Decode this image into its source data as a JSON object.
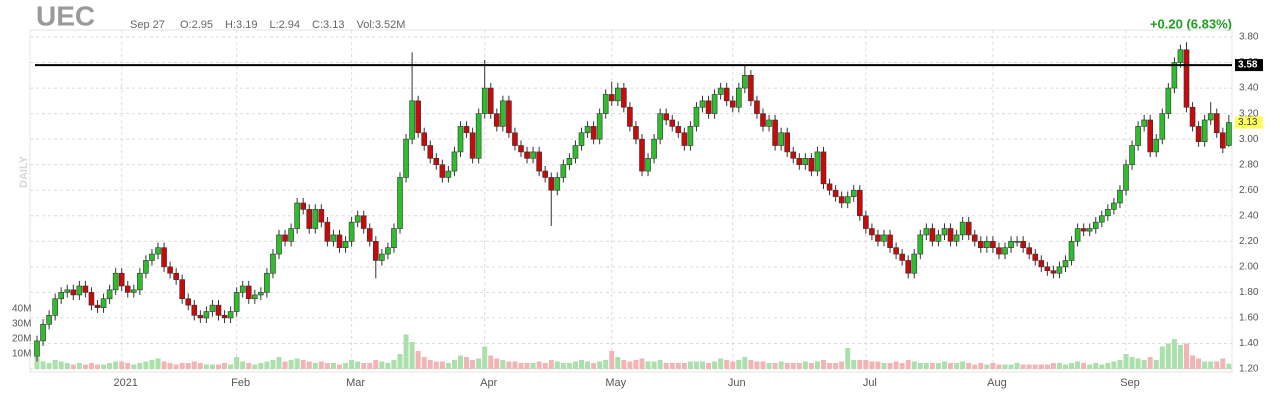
{
  "chart_data": {
    "type": "candlestick",
    "ticker": "UEC",
    "date": "Sep 27",
    "info": [
      "O:2.95",
      "H:3.19",
      "L:2.94",
      "C:3.13",
      "Vol:3.52M"
    ],
    "change": "+0.20 (6.83%)",
    "period": "DAILY",
    "up_color": "#2dbd2d",
    "down_color": "#c80a0a",
    "up_volume_color": "#abdfab",
    "down_volume_color": "#f2b5b5",
    "grid": true,
    "ylim": [
      1.2,
      3.8
    ],
    "yticks": [
      {
        "value": 1.2,
        "label": "1.20"
      },
      {
        "value": 1.4,
        "label": "1.40"
      },
      {
        "value": 1.6,
        "label": "1.60"
      },
      {
        "value": 1.8,
        "label": "1.80"
      },
      {
        "value": 2.0,
        "label": "2.00"
      },
      {
        "value": 2.2,
        "label": "2.20"
      },
      {
        "value": 2.4,
        "label": "2.40"
      },
      {
        "value": 2.6,
        "label": "2.60"
      },
      {
        "value": 2.8,
        "label": "2.80"
      },
      {
        "value": 3.0,
        "label": "3.00"
      },
      {
        "value": 3.2,
        "label": "3.20"
      },
      {
        "value": 3.4,
        "label": "3.40"
      },
      {
        "value": 3.6,
        "label": "3.60"
      },
      {
        "value": 3.8,
        "label": "3.80"
      }
    ],
    "vlim": [
      0,
      40
    ],
    "vticks": [
      {
        "value": 10,
        "label": "10M"
      },
      {
        "value": 20,
        "label": "20M"
      },
      {
        "value": 30,
        "label": "30M"
      },
      {
        "value": 40,
        "label": "40M"
      }
    ],
    "xticks": [
      {
        "value": 14,
        "label": "2021"
      },
      {
        "value": 33,
        "label": "Feb"
      },
      {
        "value": 52,
        "label": "Mar"
      },
      {
        "value": 74,
        "label": "Apr"
      },
      {
        "value": 95,
        "label": "May"
      },
      {
        "value": 115,
        "label": "Jun"
      },
      {
        "value": 137,
        "label": "Jul"
      },
      {
        "value": 158,
        "label": "Aug"
      },
      {
        "value": 180,
        "label": "Sep"
      }
    ],
    "hline": {
      "value": 3.58,
      "label": "3.58"
    },
    "open": [
      1.3,
      1.42,
      1.55,
      1.62,
      1.75,
      1.8,
      1.82,
      1.78,
      1.85,
      1.8,
      1.7,
      1.68,
      1.75,
      1.82,
      1.95,
      1.85,
      1.8,
      1.82,
      1.95,
      2.05,
      2.1,
      2.15,
      2.0,
      1.95,
      1.9,
      1.75,
      1.7,
      1.62,
      1.6,
      1.65,
      1.7,
      1.62,
      1.6,
      1.65,
      1.8,
      1.85,
      1.75,
      1.78,
      1.8,
      1.95,
      2.1,
      2.25,
      2.2,
      2.3,
      2.5,
      2.45,
      2.3,
      2.45,
      2.35,
      2.2,
      2.25,
      2.15,
      2.2,
      2.35,
      2.4,
      2.3,
      2.2,
      2.05,
      2.1,
      2.15,
      2.3,
      2.7,
      3.0,
      3.3,
      3.05,
      2.95,
      2.85,
      2.8,
      2.7,
      2.75,
      2.9,
      3.1,
      3.05,
      2.85,
      3.2,
      3.4,
      3.2,
      3.1,
      3.3,
      3.05,
      2.95,
      2.9,
      2.85,
      2.9,
      2.75,
      2.7,
      2.6,
      2.7,
      2.8,
      2.85,
      2.95,
      3.05,
      3.1,
      3.0,
      3.2,
      3.35,
      3.3,
      3.4,
      3.25,
      3.1,
      3.0,
      2.75,
      2.85,
      3.0,
      3.2,
      3.15,
      3.1,
      3.05,
      2.95,
      3.1,
      3.25,
      3.3,
      3.2,
      3.35,
      3.4,
      3.3,
      3.25,
      3.4,
      3.5,
      3.3,
      3.2,
      3.1,
      3.15,
      2.95,
      3.05,
      2.9,
      2.85,
      2.8,
      2.85,
      2.75,
      2.9,
      2.65,
      2.6,
      2.55,
      2.5,
      2.55,
      2.6,
      2.4,
      2.3,
      2.25,
      2.2,
      2.25,
      2.15,
      2.1,
      2.05,
      1.95,
      2.1,
      2.25,
      2.3,
      2.2,
      2.25,
      2.3,
      2.2,
      2.25,
      2.35,
      2.25,
      2.2,
      2.15,
      2.2,
      2.15,
      2.1,
      2.15,
      2.2,
      2.2,
      2.15,
      2.1,
      2.05,
      2.0,
      1.97,
      1.95,
      2.0,
      2.05,
      2.2,
      2.3,
      2.28,
      2.3,
      2.35,
      2.4,
      2.45,
      2.5,
      2.6,
      2.8,
      2.95,
      3.1,
      3.15,
      2.9,
      3.0,
      3.2,
      3.4,
      3.6,
      3.7,
      3.25,
      3.1,
      2.98,
      3.15,
      3.2,
      3.05,
      2.95
    ],
    "high": [
      1.46,
      1.59,
      1.66,
      1.79,
      1.84,
      1.86,
      1.86,
      1.89,
      1.89,
      1.84,
      1.74,
      1.79,
      1.86,
      1.99,
      1.99,
      1.89,
      1.86,
      1.99,
      2.09,
      2.14,
      2.19,
      2.19,
      2.04,
      1.99,
      1.94,
      1.79,
      1.74,
      1.66,
      1.69,
      1.74,
      1.74,
      1.66,
      1.69,
      1.84,
      1.89,
      1.89,
      1.82,
      1.84,
      1.99,
      2.14,
      2.29,
      2.29,
      2.34,
      2.54,
      2.54,
      2.49,
      2.49,
      2.49,
      2.39,
      2.29,
      2.29,
      2.24,
      2.39,
      2.44,
      2.44,
      2.34,
      2.24,
      2.14,
      2.19,
      2.34,
      2.74,
      3.04,
      3.68,
      3.34,
      3.09,
      2.99,
      2.89,
      2.84,
      2.79,
      2.94,
      3.14,
      3.14,
      3.09,
      3.24,
      3.62,
      3.44,
      3.24,
      3.34,
      3.34,
      3.09,
      2.99,
      2.94,
      2.94,
      2.94,
      2.79,
      2.74,
      2.74,
      2.84,
      2.89,
      2.99,
      3.09,
      3.14,
      3.14,
      3.24,
      3.39,
      3.45,
      3.44,
      3.44,
      3.29,
      3.14,
      3.04,
      2.89,
      3.04,
      3.24,
      3.24,
      3.19,
      3.14,
      3.09,
      3.14,
      3.29,
      3.34,
      3.34,
      3.39,
      3.44,
      3.44,
      3.34,
      3.44,
      3.58,
      3.54,
      3.34,
      3.24,
      3.19,
      3.19,
      3.09,
      3.09,
      2.94,
      2.89,
      2.89,
      2.89,
      2.94,
      2.94,
      2.69,
      2.64,
      2.59,
      2.59,
      2.64,
      2.64,
      2.44,
      2.34,
      2.29,
      2.29,
      2.29,
      2.19,
      2.14,
      2.09,
      2.14,
      2.29,
      2.34,
      2.34,
      2.29,
      2.34,
      2.34,
      2.29,
      2.39,
      2.39,
      2.29,
      2.24,
      2.24,
      2.24,
      2.19,
      2.19,
      2.24,
      2.24,
      2.24,
      2.19,
      2.14,
      2.09,
      2.04,
      2.01,
      2.04,
      2.09,
      2.24,
      2.34,
      2.34,
      2.34,
      2.39,
      2.44,
      2.49,
      2.54,
      2.64,
      2.84,
      2.99,
      3.14,
      3.19,
      3.19,
      3.04,
      3.24,
      3.44,
      3.64,
      3.74,
      3.76,
      3.29,
      3.14,
      3.19,
      3.29,
      3.24,
      3.09,
      3.19
    ],
    "low": [
      1.26,
      1.38,
      1.51,
      1.58,
      1.71,
      1.76,
      1.74,
      1.74,
      1.76,
      1.66,
      1.64,
      1.64,
      1.71,
      1.78,
      1.81,
      1.76,
      1.76,
      1.78,
      1.91,
      2.01,
      2.06,
      1.96,
      1.91,
      1.86,
      1.71,
      1.66,
      1.58,
      1.56,
      1.56,
      1.61,
      1.58,
      1.56,
      1.56,
      1.61,
      1.76,
      1.71,
      1.71,
      1.74,
      1.76,
      1.91,
      2.06,
      2.16,
      2.16,
      2.26,
      2.41,
      2.26,
      2.26,
      2.31,
      2.16,
      2.16,
      2.11,
      2.11,
      2.16,
      2.31,
      2.26,
      2.16,
      1.91,
      2.01,
      2.06,
      2.11,
      2.26,
      2.66,
      2.96,
      3.01,
      2.91,
      2.81,
      2.76,
      2.66,
      2.66,
      2.71,
      2.86,
      3.01,
      2.81,
      2.81,
      3.16,
      3.16,
      3.06,
      3.06,
      3.01,
      2.91,
      2.86,
      2.81,
      2.81,
      2.71,
      2.66,
      2.32,
      2.56,
      2.66,
      2.76,
      2.81,
      2.91,
      3.01,
      2.96,
      2.96,
      3.16,
      3.26,
      3.26,
      3.21,
      3.06,
      2.96,
      2.71,
      2.71,
      2.81,
      2.96,
      3.11,
      3.06,
      3.01,
      2.91,
      2.91,
      3.06,
      3.21,
      3.16,
      3.16,
      3.31,
      3.26,
      3.21,
      3.21,
      3.36,
      3.26,
      3.16,
      3.06,
      3.06,
      2.91,
      2.91,
      2.86,
      2.81,
      2.76,
      2.76,
      2.71,
      2.71,
      2.61,
      2.56,
      2.51,
      2.46,
      2.46,
      2.51,
      2.36,
      2.26,
      2.21,
      2.16,
      2.16,
      2.11,
      2.06,
      2.01,
      1.91,
      1.91,
      2.06,
      2.21,
      2.16,
      2.16,
      2.21,
      2.16,
      2.16,
      2.21,
      2.21,
      2.16,
      2.11,
      2.11,
      2.11,
      2.06,
      2.06,
      2.11,
      2.16,
      2.11,
      2.06,
      2.01,
      1.96,
      1.93,
      1.91,
      1.91,
      1.96,
      2.01,
      2.16,
      2.24,
      2.24,
      2.26,
      2.31,
      2.36,
      2.41,
      2.46,
      2.56,
      2.76,
      2.91,
      3.06,
      2.86,
      2.86,
      2.96,
      3.16,
      3.36,
      3.56,
      3.21,
      3.06,
      2.94,
      2.94,
      3.11,
      3.01,
      2.89,
      2.94
    ],
    "close": [
      1.42,
      1.55,
      1.62,
      1.75,
      1.8,
      1.82,
      1.78,
      1.85,
      1.8,
      1.7,
      1.68,
      1.75,
      1.82,
      1.95,
      1.85,
      1.8,
      1.82,
      1.95,
      2.05,
      2.1,
      2.15,
      2.0,
      1.95,
      1.9,
      1.75,
      1.7,
      1.62,
      1.6,
      1.65,
      1.7,
      1.62,
      1.6,
      1.65,
      1.8,
      1.85,
      1.75,
      1.78,
      1.8,
      1.95,
      2.1,
      2.25,
      2.2,
      2.3,
      2.5,
      2.45,
      2.3,
      2.45,
      2.35,
      2.2,
      2.25,
      2.15,
      2.2,
      2.35,
      2.4,
      2.3,
      2.2,
      2.05,
      2.1,
      2.15,
      2.3,
      2.7,
      3.0,
      3.3,
      3.05,
      2.95,
      2.85,
      2.8,
      2.7,
      2.75,
      2.9,
      3.1,
      3.05,
      2.85,
      3.2,
      3.4,
      3.2,
      3.1,
      3.3,
      3.05,
      2.95,
      2.9,
      2.85,
      2.9,
      2.75,
      2.7,
      2.6,
      2.7,
      2.8,
      2.85,
      2.95,
      3.05,
      3.1,
      3.0,
      3.2,
      3.35,
      3.3,
      3.4,
      3.25,
      3.1,
      3.0,
      2.75,
      2.85,
      3.0,
      3.2,
      3.15,
      3.1,
      3.05,
      2.95,
      3.1,
      3.25,
      3.3,
      3.2,
      3.35,
      3.4,
      3.3,
      3.25,
      3.4,
      3.5,
      3.3,
      3.2,
      3.1,
      3.15,
      2.95,
      3.05,
      2.9,
      2.85,
      2.8,
      2.85,
      2.75,
      2.9,
      2.65,
      2.6,
      2.55,
      2.5,
      2.55,
      2.6,
      2.4,
      2.3,
      2.25,
      2.2,
      2.25,
      2.15,
      2.1,
      2.05,
      1.95,
      2.1,
      2.25,
      2.3,
      2.2,
      2.25,
      2.3,
      2.2,
      2.25,
      2.35,
      2.25,
      2.2,
      2.15,
      2.2,
      2.15,
      2.1,
      2.15,
      2.2,
      2.2,
      2.15,
      2.1,
      2.05,
      2.0,
      1.97,
      1.95,
      2.0,
      2.05,
      2.2,
      2.3,
      2.28,
      2.3,
      2.35,
      2.4,
      2.45,
      2.5,
      2.6,
      2.8,
      2.95,
      3.1,
      3.15,
      2.9,
      3.0,
      3.2,
      3.4,
      3.6,
      3.7,
      3.25,
      3.1,
      2.98,
      3.15,
      3.2,
      3.05,
      2.93,
      3.13
    ],
    "volume": [
      8,
      5,
      4,
      6,
      5,
      4,
      3,
      4,
      3,
      4,
      3,
      3,
      4,
      5,
      5,
      4,
      3,
      4,
      5,
      6,
      7,
      5,
      4,
      3,
      4,
      4,
      5,
      4,
      3,
      3,
      3,
      4,
      3,
      8,
      5,
      4,
      3,
      4,
      5,
      6,
      8,
      5,
      6,
      7,
      6,
      5,
      4,
      5,
      4,
      4,
      3,
      4,
      6,
      5,
      4,
      4,
      6,
      5,
      4,
      6,
      10,
      23,
      18,
      12,
      8,
      6,
      5,
      5,
      4,
      6,
      9,
      8,
      6,
      7,
      15,
      9,
      7,
      6,
      5,
      5,
      4,
      4,
      4,
      5,
      4,
      6,
      5,
      4,
      4,
      5,
      6,
      5,
      4,
      5,
      6,
      12,
      8,
      6,
      5,
      6,
      7,
      5,
      5,
      6,
      4,
      4,
      4,
      4,
      5,
      5,
      5,
      4,
      5,
      7,
      6,
      5,
      6,
      8,
      6,
      5,
      5,
      4,
      4,
      5,
      4,
      4,
      4,
      5,
      4,
      5,
      6,
      4,
      4,
      5,
      14,
      6,
      6,
      6,
      5,
      5,
      4,
      4,
      5,
      4,
      6,
      5,
      4,
      4,
      4,
      4,
      5,
      4,
      4,
      5,
      4,
      3,
      4,
      3,
      4,
      3,
      3,
      3,
      4,
      3,
      3,
      3,
      3,
      3,
      4,
      4,
      3,
      4,
      5,
      4,
      3,
      4,
      3,
      4,
      5,
      6,
      10,
      8,
      7,
      6,
      8,
      6,
      15,
      17,
      20,
      16,
      17,
      9,
      7,
      5,
      5,
      5,
      7,
      3.52
    ]
  }
}
